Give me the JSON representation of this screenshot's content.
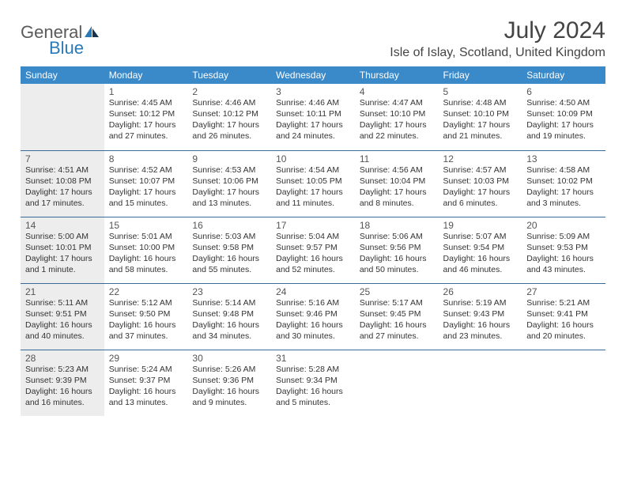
{
  "brand": {
    "part1": "General",
    "part2": "Blue"
  },
  "title": "July 2024",
  "location": "Isle of Islay, Scotland, United Kingdom",
  "colors": {
    "header_bg": "#3a89c9",
    "header_text": "#ffffff",
    "row_border": "#3a6a9a",
    "shaded_bg": "#ededed",
    "page_bg": "#ffffff",
    "brand_gray": "#5a5a5a",
    "brand_blue": "#2a7ab8"
  },
  "day_headers": [
    "Sunday",
    "Monday",
    "Tuesday",
    "Wednesday",
    "Thursday",
    "Friday",
    "Saturday"
  ],
  "weeks": [
    [
      {
        "shaded": true
      },
      {
        "day": "1",
        "sunrise": "4:45 AM",
        "sunset": "10:12 PM",
        "daylight": "17 hours and 27 minutes."
      },
      {
        "day": "2",
        "sunrise": "4:46 AM",
        "sunset": "10:12 PM",
        "daylight": "17 hours and 26 minutes."
      },
      {
        "day": "3",
        "sunrise": "4:46 AM",
        "sunset": "10:11 PM",
        "daylight": "17 hours and 24 minutes."
      },
      {
        "day": "4",
        "sunrise": "4:47 AM",
        "sunset": "10:10 PM",
        "daylight": "17 hours and 22 minutes."
      },
      {
        "day": "5",
        "sunrise": "4:48 AM",
        "sunset": "10:10 PM",
        "daylight": "17 hours and 21 minutes."
      },
      {
        "day": "6",
        "sunrise": "4:50 AM",
        "sunset": "10:09 PM",
        "daylight": "17 hours and 19 minutes."
      }
    ],
    [
      {
        "day": "7",
        "sunrise": "4:51 AM",
        "sunset": "10:08 PM",
        "daylight": "17 hours and 17 minutes.",
        "shaded": true
      },
      {
        "day": "8",
        "sunrise": "4:52 AM",
        "sunset": "10:07 PM",
        "daylight": "17 hours and 15 minutes."
      },
      {
        "day": "9",
        "sunrise": "4:53 AM",
        "sunset": "10:06 PM",
        "daylight": "17 hours and 13 minutes."
      },
      {
        "day": "10",
        "sunrise": "4:54 AM",
        "sunset": "10:05 PM",
        "daylight": "17 hours and 11 minutes."
      },
      {
        "day": "11",
        "sunrise": "4:56 AM",
        "sunset": "10:04 PM",
        "daylight": "17 hours and 8 minutes."
      },
      {
        "day": "12",
        "sunrise": "4:57 AM",
        "sunset": "10:03 PM",
        "daylight": "17 hours and 6 minutes."
      },
      {
        "day": "13",
        "sunrise": "4:58 AM",
        "sunset": "10:02 PM",
        "daylight": "17 hours and 3 minutes."
      }
    ],
    [
      {
        "day": "14",
        "sunrise": "5:00 AM",
        "sunset": "10:01 PM",
        "daylight": "17 hours and 1 minute.",
        "shaded": true
      },
      {
        "day": "15",
        "sunrise": "5:01 AM",
        "sunset": "10:00 PM",
        "daylight": "16 hours and 58 minutes."
      },
      {
        "day": "16",
        "sunrise": "5:03 AM",
        "sunset": "9:58 PM",
        "daylight": "16 hours and 55 minutes."
      },
      {
        "day": "17",
        "sunrise": "5:04 AM",
        "sunset": "9:57 PM",
        "daylight": "16 hours and 52 minutes."
      },
      {
        "day": "18",
        "sunrise": "5:06 AM",
        "sunset": "9:56 PM",
        "daylight": "16 hours and 50 minutes."
      },
      {
        "day": "19",
        "sunrise": "5:07 AM",
        "sunset": "9:54 PM",
        "daylight": "16 hours and 46 minutes."
      },
      {
        "day": "20",
        "sunrise": "5:09 AM",
        "sunset": "9:53 PM",
        "daylight": "16 hours and 43 minutes."
      }
    ],
    [
      {
        "day": "21",
        "sunrise": "5:11 AM",
        "sunset": "9:51 PM",
        "daylight": "16 hours and 40 minutes.",
        "shaded": true
      },
      {
        "day": "22",
        "sunrise": "5:12 AM",
        "sunset": "9:50 PM",
        "daylight": "16 hours and 37 minutes."
      },
      {
        "day": "23",
        "sunrise": "5:14 AM",
        "sunset": "9:48 PM",
        "daylight": "16 hours and 34 minutes."
      },
      {
        "day": "24",
        "sunrise": "5:16 AM",
        "sunset": "9:46 PM",
        "daylight": "16 hours and 30 minutes."
      },
      {
        "day": "25",
        "sunrise": "5:17 AM",
        "sunset": "9:45 PM",
        "daylight": "16 hours and 27 minutes."
      },
      {
        "day": "26",
        "sunrise": "5:19 AM",
        "sunset": "9:43 PM",
        "daylight": "16 hours and 23 minutes."
      },
      {
        "day": "27",
        "sunrise": "5:21 AM",
        "sunset": "9:41 PM",
        "daylight": "16 hours and 20 minutes."
      }
    ],
    [
      {
        "day": "28",
        "sunrise": "5:23 AM",
        "sunset": "9:39 PM",
        "daylight": "16 hours and 16 minutes.",
        "shaded": true
      },
      {
        "day": "29",
        "sunrise": "5:24 AM",
        "sunset": "9:37 PM",
        "daylight": "16 hours and 13 minutes."
      },
      {
        "day": "30",
        "sunrise": "5:26 AM",
        "sunset": "9:36 PM",
        "daylight": "16 hours and 9 minutes."
      },
      {
        "day": "31",
        "sunrise": "5:28 AM",
        "sunset": "9:34 PM",
        "daylight": "16 hours and 5 minutes."
      },
      {
        "shaded": false
      },
      {
        "shaded": false
      },
      {
        "shaded": false
      }
    ]
  ],
  "labels": {
    "sunrise": "Sunrise: ",
    "sunset": "Sunset: ",
    "daylight": "Daylight: "
  }
}
